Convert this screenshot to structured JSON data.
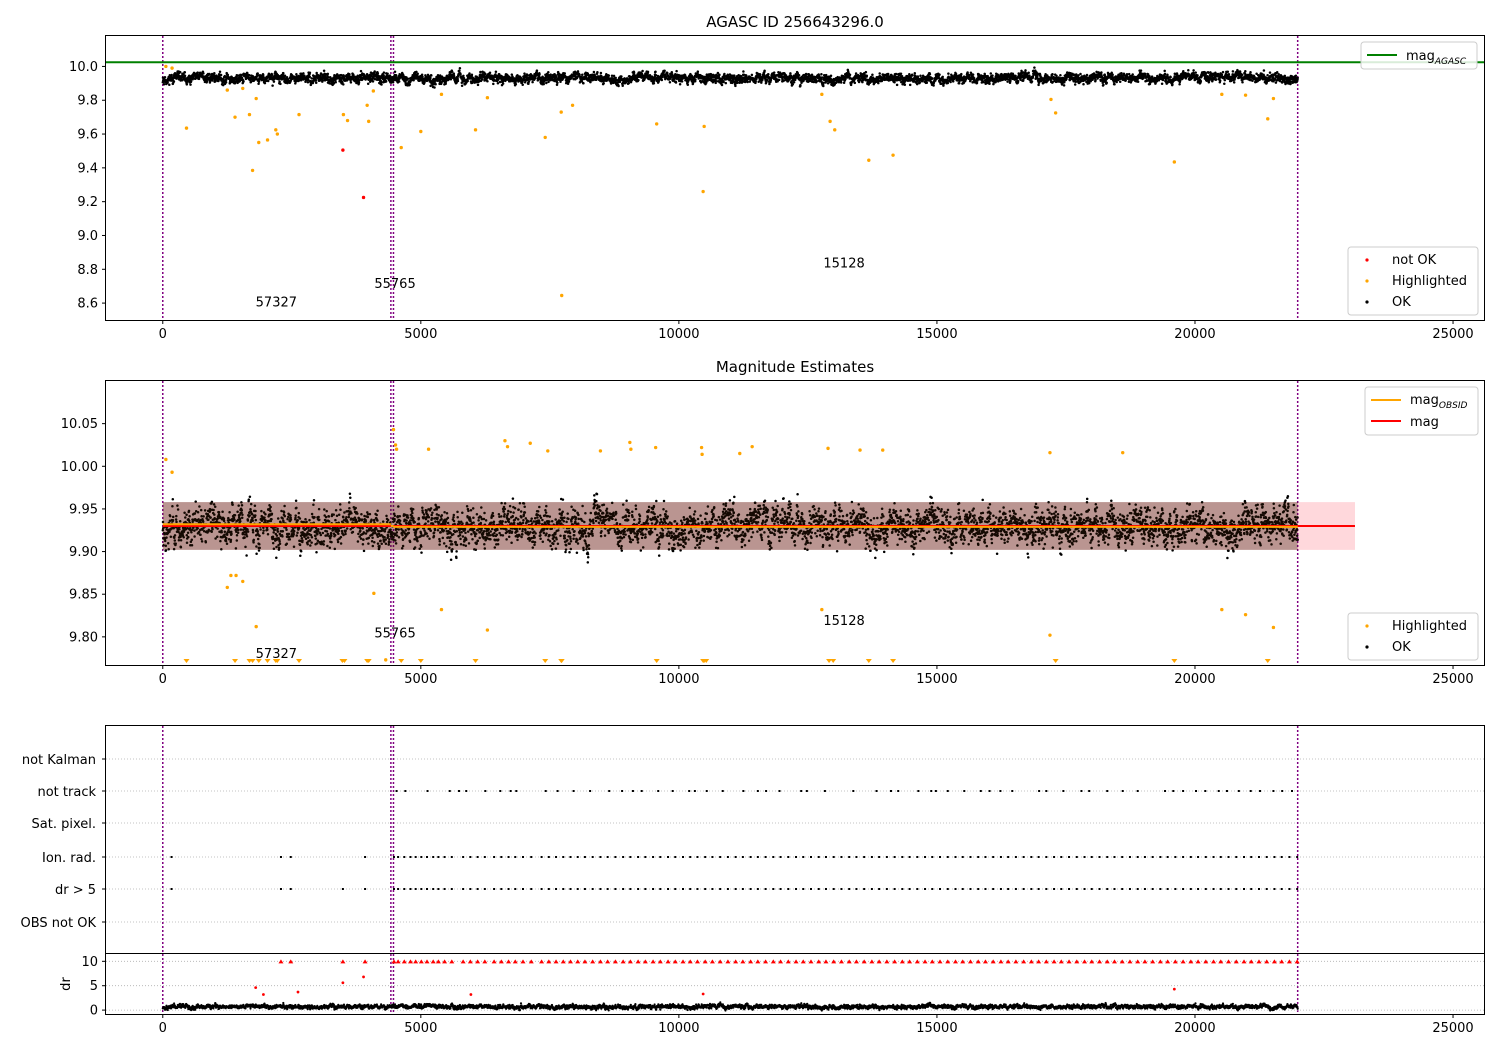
{
  "chart_data": [
    {
      "type": "scatter",
      "title": "AGASC ID 256643296.0",
      "xlim": [
        -1100,
        25600
      ],
      "ylim": [
        8.5,
        10.18
      ],
      "xticks": [
        0,
        5000,
        10000,
        15000,
        20000,
        25000
      ],
      "yticks": [
        8.6,
        8.8,
        9.0,
        9.2,
        9.4,
        9.6,
        9.8,
        10.0
      ],
      "ytick_labels": [
        "8.6",
        "8.8",
        "9.0",
        "9.2",
        "9.4",
        "9.6",
        "9.8",
        "10.0"
      ],
      "grid": false,
      "hline": {
        "name": "mag_AGASC",
        "legend_main": "mag",
        "legend_sub": "AGASC",
        "value": 10.025,
        "color": "#008000"
      },
      "obs_boundaries": [
        0,
        4420,
        4470,
        21990
      ],
      "obs_labels": [
        {
          "text": "57327",
          "x": 1800,
          "y": 8.58
        },
        {
          "text": "55765",
          "x": 4100,
          "y": 8.69
        },
        {
          "text": "15128",
          "x": 12800,
          "y": 8.81
        }
      ],
      "series": [
        {
          "name": "not OK",
          "color": "#ff0000",
          "points": [
            [
              3490,
              9.505
            ],
            [
              3890,
              9.225
            ]
          ]
        },
        {
          "name": "Highlighted",
          "color": "#ffa500",
          "points": [
            [
              60,
              10.0
            ],
            [
              180,
              9.99
            ],
            [
              460,
              9.635
            ],
            [
              1250,
              9.86
            ],
            [
              1400,
              9.7
            ],
            [
              1550,
              9.87
            ],
            [
              1680,
              9.715
            ],
            [
              1740,
              9.385
            ],
            [
              1810,
              9.81
            ],
            [
              1860,
              9.55
            ],
            [
              2030,
              9.565
            ],
            [
              2190,
              9.625
            ],
            [
              2220,
              9.6
            ],
            [
              2640,
              9.715
            ],
            [
              3500,
              9.715
            ],
            [
              3580,
              9.68
            ],
            [
              3960,
              9.77
            ],
            [
              3990,
              9.675
            ],
            [
              4080,
              9.855
            ],
            [
              4620,
              9.52
            ],
            [
              5000,
              9.615
            ],
            [
              5400,
              9.835
            ],
            [
              6060,
              9.625
            ],
            [
              6290,
              9.815
            ],
            [
              7410,
              9.58
            ],
            [
              7720,
              9.73
            ],
            [
              7730,
              8.645
            ],
            [
              7940,
              9.77
            ],
            [
              9570,
              9.66
            ],
            [
              10470,
              9.26
            ],
            [
              10490,
              9.645
            ],
            [
              12770,
              9.835
            ],
            [
              12930,
              9.675
            ],
            [
              13020,
              9.625
            ],
            [
              13680,
              9.445
            ],
            [
              14150,
              9.475
            ],
            [
              17210,
              9.805
            ],
            [
              17300,
              9.725
            ],
            [
              19600,
              9.435
            ],
            [
              20520,
              9.835
            ],
            [
              20980,
              9.83
            ],
            [
              21410,
              9.69
            ],
            [
              21520,
              9.81
            ]
          ]
        },
        {
          "name": "OK",
          "color": "#000000",
          "band": {
            "center": 9.93,
            "spread": 0.06,
            "xmin": 0,
            "xmax": 21990
          }
        }
      ],
      "legends": [
        {
          "position": "upper-right",
          "entries": [
            {
              "label_main": "mag",
              "label_sub": "AGASC",
              "kind": "line",
              "color": "#008000"
            }
          ]
        },
        {
          "position": "lower-right",
          "entries": [
            {
              "label": "not OK",
              "kind": "dot",
              "color": "#ff0000"
            },
            {
              "label": "Highlighted",
              "kind": "dot",
              "color": "#ffa500"
            },
            {
              "label": "OK",
              "kind": "dot",
              "color": "#000000"
            }
          ]
        }
      ]
    },
    {
      "type": "scatter",
      "title": "Magnitude Estimates",
      "xlim": [
        -1100,
        25600
      ],
      "ylim": [
        9.767,
        10.1
      ],
      "xticks": [
        0,
        5000,
        10000,
        15000,
        20000,
        25000
      ],
      "yticks": [
        9.8,
        9.85,
        9.9,
        9.95,
        10.0,
        10.05
      ],
      "ytick_labels": [
        "9.80",
        "9.85",
        "9.90",
        "9.95",
        "10.00",
        "10.05"
      ],
      "grid": false,
      "mag_line": {
        "name": "mag",
        "value": 9.93,
        "color": "#ff0000",
        "band": [
          9.902,
          9.958
        ],
        "band_color": "#ffd8dc",
        "xmax": 23100
      },
      "mag_obsid": {
        "name": "mag_OBSID",
        "legend_main": "mag",
        "legend_sub": "OBSID",
        "color": "#ffa500",
        "segments": [
          {
            "x0": 0,
            "x1": 4420,
            "value": 9.932
          },
          {
            "x0": 4420,
            "x1": 4470,
            "value": 9.93
          },
          {
            "x0": 4470,
            "x1": 21990,
            "value": 9.929
          }
        ]
      },
      "obs_boundaries": [
        0,
        4420,
        4470,
        21990
      ],
      "obs_labels": [
        {
          "text": "57327",
          "x": 1800,
          "y": 9.775
        },
        {
          "text": "55765",
          "x": 4100,
          "y": 9.799
        },
        {
          "text": "15128",
          "x": 12800,
          "y": 9.814
        }
      ],
      "clipped_marker": {
        "color": "#ffa500",
        "xs": [
          460,
          1400,
          1680,
          1740,
          1860,
          2030,
          2190,
          2220,
          2640,
          3480,
          3520,
          3960,
          3990,
          4620,
          5000,
          6060,
          7410,
          7720,
          7730,
          9570,
          10470,
          10490,
          10530,
          12910,
          12990,
          13680,
          14150,
          17300,
          19600,
          21410
        ]
      },
      "series": [
        {
          "name": "Highlighted",
          "color": "#ffa500",
          "points": [
            [
              60,
              10.008
            ],
            [
              180,
              9.993
            ],
            [
              1250,
              9.858
            ],
            [
              1320,
              9.872
            ],
            [
              1420,
              9.872
            ],
            [
              1550,
              9.865
            ],
            [
              1810,
              9.812
            ],
            [
              4090,
              9.851
            ],
            [
              4320,
              9.773
            ],
            [
              4470,
              10.043
            ],
            [
              4510,
              10.025
            ],
            [
              4530,
              10.02
            ],
            [
              5150,
              10.02
            ],
            [
              5400,
              9.832
            ],
            [
              6290,
              9.808
            ],
            [
              6630,
              10.03
            ],
            [
              6680,
              10.023
            ],
            [
              7120,
              10.027
            ],
            [
              7460,
              10.018
            ],
            [
              8480,
              10.018
            ],
            [
              9050,
              10.028
            ],
            [
              9070,
              10.02
            ],
            [
              9550,
              10.022
            ],
            [
              10440,
              10.022
            ],
            [
              10450,
              10.014
            ],
            [
              11180,
              10.015
            ],
            [
              11420,
              10.023
            ],
            [
              12770,
              9.832
            ],
            [
              12890,
              10.021
            ],
            [
              13510,
              10.019
            ],
            [
              13950,
              10.019
            ],
            [
              17190,
              9.802
            ],
            [
              17190,
              10.016
            ],
            [
              18600,
              10.016
            ],
            [
              20520,
              9.832
            ],
            [
              20980,
              9.826
            ],
            [
              21520,
              9.811
            ]
          ]
        },
        {
          "name": "OK",
          "color": "#000000",
          "band": {
            "center": 9.93,
            "spread": 0.045,
            "xmin": 0,
            "xmax": 21990
          }
        }
      ],
      "legends": [
        {
          "position": "upper-right",
          "entries": [
            {
              "label_main": "mag",
              "label_sub": "OBSID",
              "kind": "line",
              "color": "#ffa500"
            },
            {
              "label": "mag",
              "kind": "line",
              "color": "#ff0000"
            }
          ]
        },
        {
          "position": "lower-right",
          "entries": [
            {
              "label": "Highlighted",
              "kind": "dot",
              "color": "#ffa500"
            },
            {
              "label": "OK",
              "kind": "dot",
              "color": "#000000"
            }
          ]
        }
      ]
    },
    {
      "type": "scatter",
      "title": "",
      "xlim": [
        -1100,
        25600
      ],
      "xticks": [
        0,
        5000,
        10000,
        15000,
        20000,
        25000
      ],
      "flag_rows": [
        "not Kalman",
        "not track",
        "Sat. pixel.",
        "Ion. rad.",
        "dr > 5",
        "OBS not OK"
      ],
      "flag_points": {
        "not track": [
          4530,
          4700,
          5130,
          5560,
          5740,
          5880,
          6250,
          6540,
          6740,
          6850,
          7420,
          7650,
          7960,
          8280,
          8650,
          8900,
          9110,
          9280,
          9600,
          9880,
          10200,
          10310,
          10540,
          10850,
          11250,
          11530,
          11690,
          11950,
          12370,
          12480,
          12830,
          13380,
          13830,
          14110,
          14250,
          14640,
          14890,
          14980,
          15210,
          15530,
          15850,
          16020,
          16230,
          16460,
          16980,
          17120,
          17450,
          17800,
          17950,
          18300,
          18600,
          18890,
          19420,
          19580,
          19770,
          20020,
          20200,
          20460,
          20620,
          20850,
          21080,
          21260,
          21520,
          21690,
          21880
        ],
        "Ion. rad.": [
          170,
          2290,
          2480,
          3920,
          4480,
          4560,
          4680,
          4800,
          4900,
          5010,
          5120,
          5240,
          5340,
          5460,
          5600,
          5820,
          5960,
          6100,
          6240,
          6420,
          6560,
          6700,
          6830,
          6980,
          7140,
          7340,
          7480,
          7620,
          7760,
          7900,
          8040,
          8180,
          8330,
          8480,
          8620,
          8770,
          8920,
          9060,
          9210,
          9350,
          9500,
          9640,
          9790,
          9930,
          10080,
          10220,
          10360,
          10510,
          10650,
          10800,
          10950,
          11100,
          11240,
          11390,
          11530,
          11680,
          11830,
          11970,
          12120,
          12270,
          12410,
          12560,
          12710,
          12850,
          13000,
          13150,
          13300,
          13440,
          13590,
          13740,
          13880,
          14030,
          14180,
          14330,
          14470,
          14620,
          14770,
          14910,
          15060,
          15210,
          15360,
          15500,
          15650,
          15800,
          15940,
          16090,
          16240,
          16380,
          16530,
          16680,
          16830,
          16970,
          17120,
          17270,
          17410,
          17560,
          17710,
          17860,
          18000,
          18150,
          18300,
          18440,
          18590,
          18740,
          18890,
          19030,
          19180,
          19330,
          19470,
          19620,
          19770,
          19920,
          20060,
          20210,
          20360,
          20500,
          20650,
          20800,
          20950,
          21090,
          21240,
          21390,
          21540,
          21680,
          21830,
          21980
        ],
        "dr > 5": [
          170,
          2290,
          2480,
          3490,
          3920,
          4480,
          4560,
          4680,
          4800,
          4900,
          5010,
          5120,
          5240,
          5340,
          5460,
          5600,
          5820,
          5960,
          6100,
          6240,
          6420,
          6560,
          6700,
          6830,
          6980,
          7140,
          7340,
          7480,
          7620,
          7760,
          7900,
          8040,
          8180,
          8330,
          8480,
          8620,
          8770,
          8920,
          9060,
          9210,
          9350,
          9500,
          9640,
          9790,
          9930,
          10080,
          10220,
          10360,
          10510,
          10650,
          10800,
          10950,
          11100,
          11240,
          11390,
          11530,
          11680,
          11830,
          11970,
          12120,
          12270,
          12410,
          12560,
          12710,
          12850,
          13000,
          13150,
          13300,
          13440,
          13590,
          13740,
          13880,
          14030,
          14180,
          14330,
          14470,
          14620,
          14770,
          14910,
          15060,
          15210,
          15360,
          15500,
          15650,
          15800,
          15940,
          16090,
          16240,
          16380,
          16530,
          16680,
          16830,
          16970,
          17120,
          17270,
          17410,
          17560,
          17710,
          17860,
          18000,
          18150,
          18300,
          18440,
          18590,
          18740,
          18890,
          19030,
          19180,
          19330,
          19470,
          19620,
          19770,
          19920,
          20060,
          20210,
          20360,
          20500,
          20650,
          20800,
          20950,
          21090,
          21240,
          21390,
          21540,
          21680,
          21830,
          21980
        ]
      },
      "dr_panel": {
        "ylabel": "dr",
        "ylim": [
          -0.8,
          11.5
        ],
        "yticks": [
          0,
          5,
          10
        ],
        "ytick_labels": [
          "0",
          "5",
          "10"
        ],
        "clipped_value": 10,
        "clipped_color": "#ff0000",
        "red_points": [
          [
            1800,
            4.6
          ],
          [
            1950,
            3.2
          ],
          [
            2620,
            3.7
          ],
          [
            3490,
            5.6
          ],
          [
            3890,
            6.8
          ],
          [
            5970,
            3.2
          ],
          [
            10470,
            3.3
          ],
          [
            19600,
            4.3
          ]
        ],
        "baseline": {
          "center": 0.7,
          "spread": 0.9,
          "color": "#000000",
          "xmin": 0,
          "xmax": 21990
        }
      },
      "obs_boundaries": [
        0,
        4420,
        4470,
        21990
      ]
    }
  ]
}
